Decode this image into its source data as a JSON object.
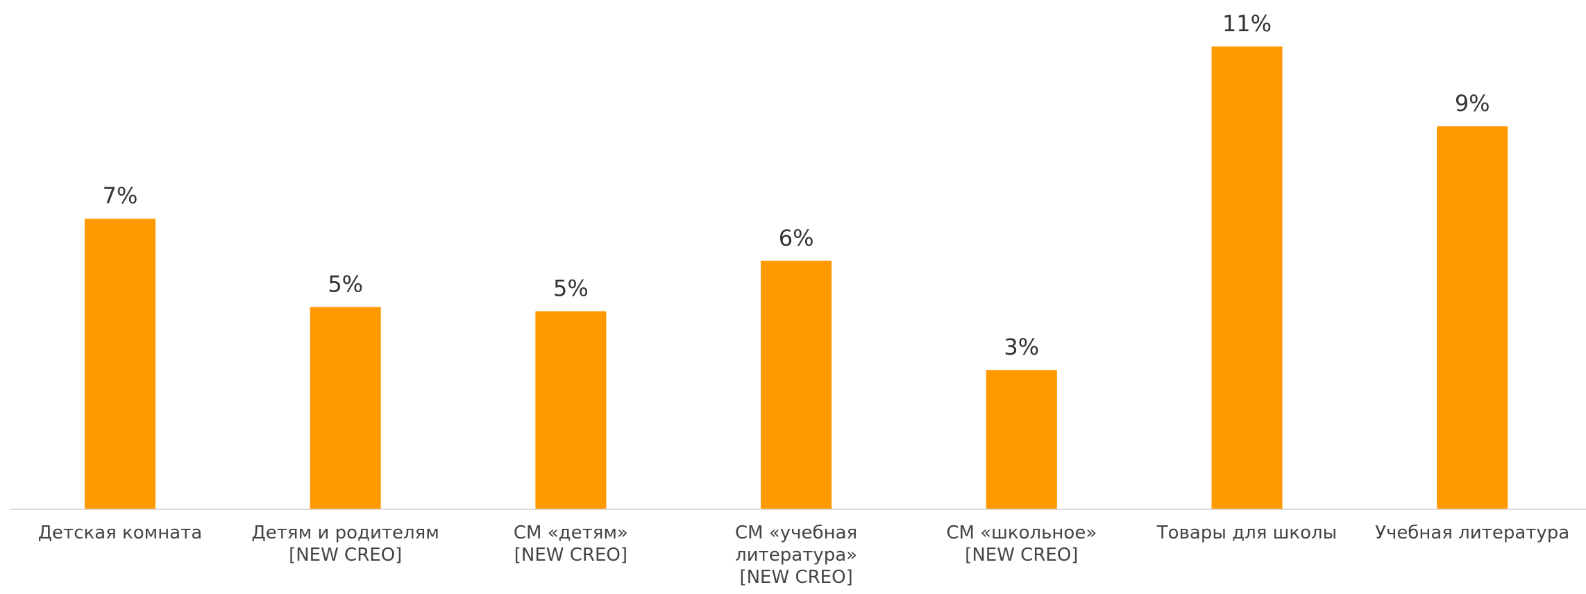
{
  "chart_data": {
    "type": "bar",
    "categories": [
      "Детская комната",
      "Детям и родителям\n[NEW CREO]",
      "СМ «детям»\n[NEW CREO]",
      "СМ «учебная\nлитература»\n[NEW CREO]",
      "СМ «школьное»\n[NEW CREO]",
      "Товары для школы",
      "Учебная литература"
    ],
    "values": [
      6.9,
      4.8,
      4.7,
      5.9,
      3.3,
      11,
      9.1
    ],
    "value_labels": [
      "7%",
      "5%",
      "5%",
      "6%",
      "3%",
      "11%",
      "9%"
    ],
    "color": "#ff9900"
  }
}
